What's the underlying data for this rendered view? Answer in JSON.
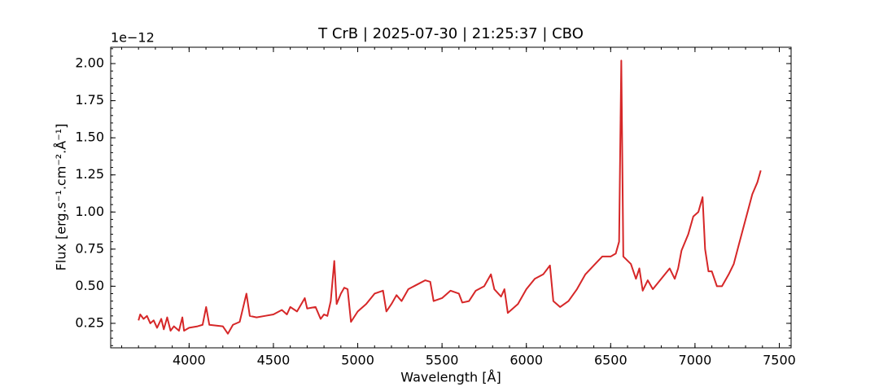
{
  "chart_data": {
    "type": "line",
    "title": "T CrB | 2025-07-30 | 21:25:37 | CBO",
    "x_label": "Wavelength [Å]",
    "y_label": "Flux [erg.s⁻¹.cm⁻².Å⁻¹]",
    "y_offset_text": "1e−12",
    "xlim": [
      3535,
      7570
    ],
    "ylim": [
      0.085,
      2.11
    ],
    "xticks": [
      4000,
      4500,
      5000,
      5500,
      6000,
      6500,
      7000,
      7500
    ],
    "yticks": [
      {
        "value": 0.25,
        "label": "0.25"
      },
      {
        "value": 0.5,
        "label": "0.50"
      },
      {
        "value": 0.75,
        "label": "0.75"
      },
      {
        "value": 1,
        "label": "1.00"
      },
      {
        "value": 1.25,
        "label": "1.25"
      },
      {
        "value": 1.5,
        "label": "1.50"
      },
      {
        "value": 1.75,
        "label": "1.75"
      },
      {
        "value": 2,
        "label": "2.00"
      }
    ],
    "x": [
      3700,
      3710,
      3730,
      3750,
      3770,
      3790,
      3810,
      3835,
      3850,
      3870,
      3890,
      3910,
      3940,
      3960,
      3970,
      4000,
      4050,
      4080,
      4101,
      4120,
      4200,
      4230,
      4260,
      4300,
      4340,
      4360,
      4400,
      4450,
      4500,
      4550,
      4580,
      4600,
      4640,
      4686,
      4700,
      4750,
      4780,
      4800,
      4820,
      4840,
      4861,
      4875,
      4900,
      4920,
      4940,
      4960,
      5000,
      5050,
      5100,
      5150,
      5170,
      5200,
      5230,
      5260,
      5300,
      5350,
      5400,
      5430,
      5450,
      5500,
      5550,
      5600,
      5620,
      5660,
      5700,
      5750,
      5790,
      5810,
      5850,
      5870,
      5890,
      5950,
      6000,
      6050,
      6100,
      6140,
      6160,
      6200,
      6250,
      6300,
      6350,
      6400,
      6450,
      6500,
      6530,
      6550,
      6563,
      6575,
      6620,
      6650,
      6670,
      6690,
      6720,
      6750,
      6800,
      6850,
      6880,
      6900,
      6920,
      6960,
      6990,
      7020,
      7045,
      7060,
      7080,
      7100,
      7130,
      7160,
      7200,
      7230,
      7260,
      7300,
      7340,
      7370,
      7390
    ],
    "series": [
      {
        "color": "#d62728",
        "values": [
          0.27,
          0.31,
          0.28,
          0.3,
          0.25,
          0.27,
          0.22,
          0.28,
          0.21,
          0.29,
          0.2,
          0.23,
          0.2,
          0.29,
          0.2,
          0.22,
          0.23,
          0.24,
          0.36,
          0.24,
          0.23,
          0.18,
          0.24,
          0.26,
          0.45,
          0.3,
          0.29,
          0.3,
          0.31,
          0.34,
          0.31,
          0.36,
          0.33,
          0.42,
          0.35,
          0.36,
          0.28,
          0.31,
          0.3,
          0.4,
          0.67,
          0.38,
          0.45,
          0.49,
          0.48,
          0.26,
          0.33,
          0.38,
          0.45,
          0.47,
          0.33,
          0.38,
          0.44,
          0.4,
          0.48,
          0.51,
          0.54,
          0.53,
          0.4,
          0.42,
          0.47,
          0.45,
          0.39,
          0.4,
          0.47,
          0.5,
          0.58,
          0.48,
          0.43,
          0.48,
          0.32,
          0.38,
          0.48,
          0.55,
          0.58,
          0.64,
          0.4,
          0.36,
          0.4,
          0.48,
          0.58,
          0.64,
          0.7,
          0.7,
          0.72,
          0.8,
          2.02,
          0.7,
          0.65,
          0.55,
          0.62,
          0.47,
          0.54,
          0.48,
          0.55,
          0.62,
          0.55,
          0.62,
          0.74,
          0.85,
          0.97,
          1.0,
          1.1,
          0.75,
          0.6,
          0.6,
          0.5,
          0.5,
          0.58,
          0.65,
          0.78,
          0.95,
          1.12,
          1.2,
          1.28
        ]
      }
    ]
  }
}
